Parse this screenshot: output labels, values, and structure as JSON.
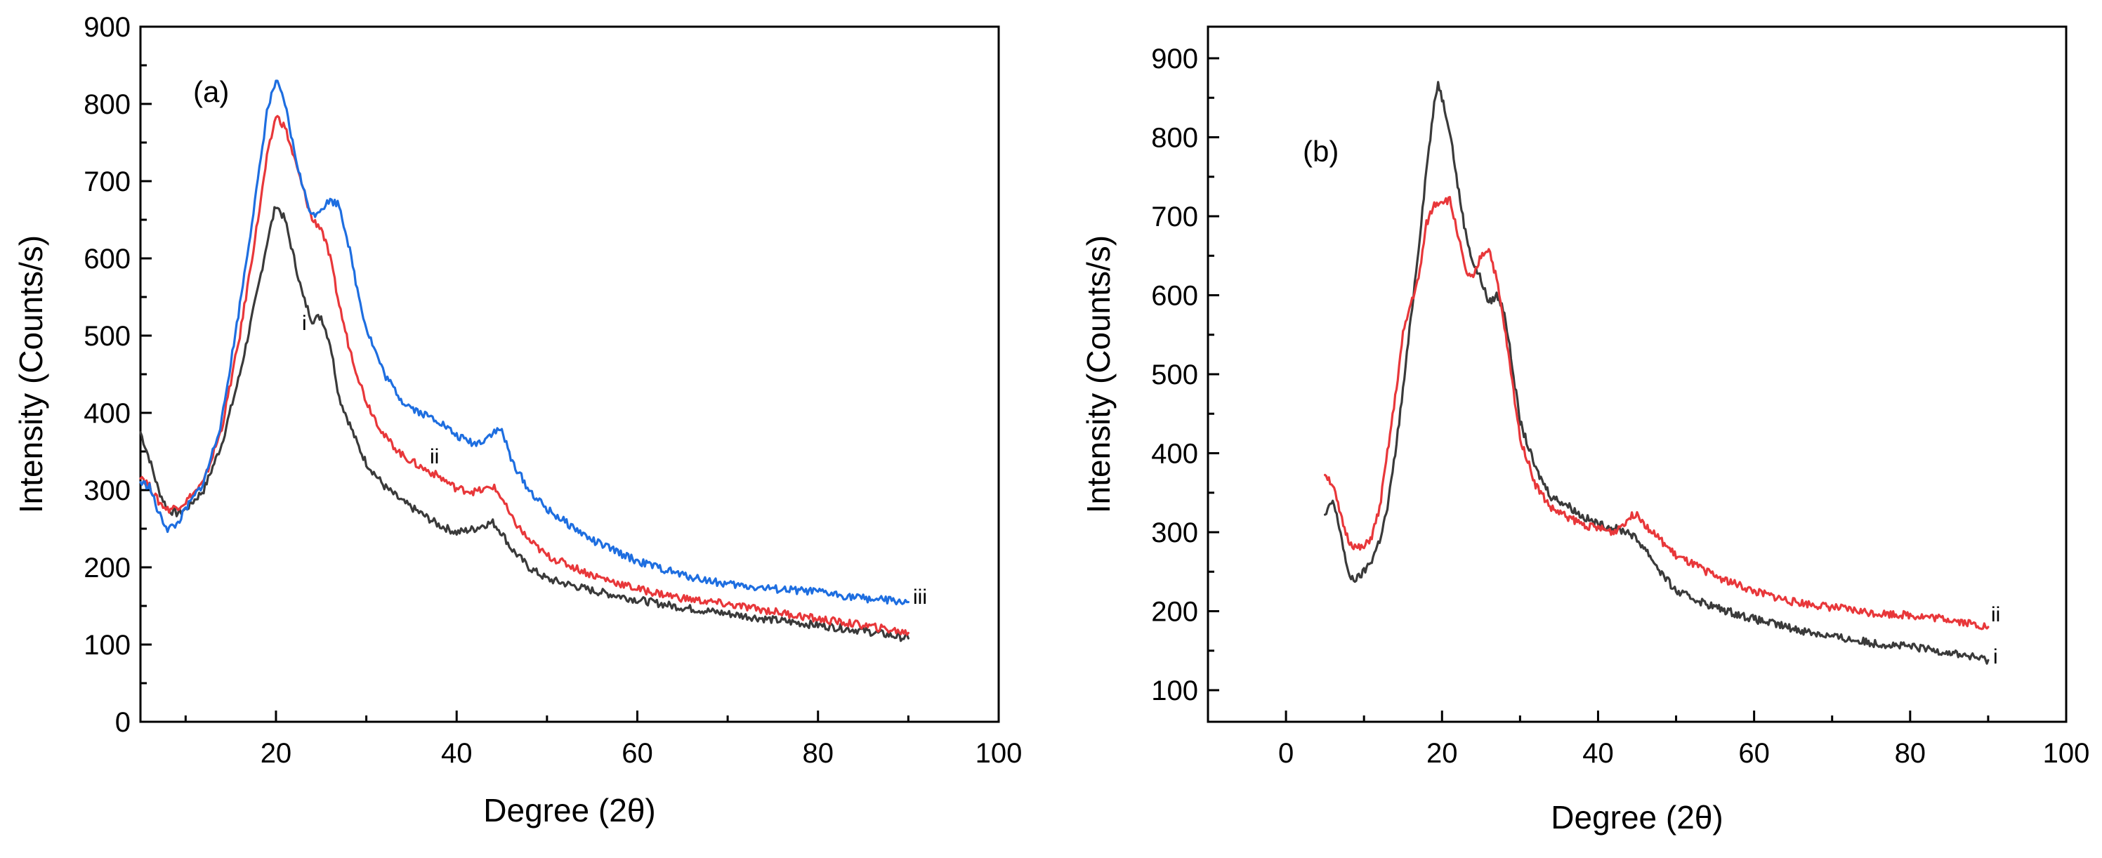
{
  "chart_data": [
    {
      "panel": "(a)",
      "type": "line",
      "xlabel": "Degree (2θ)",
      "ylabel": "Intensity (Counts/s)",
      "xlim": [
        5,
        100
      ],
      "ylim": [
        0,
        900
      ],
      "xticks": [
        20,
        40,
        60,
        80,
        100
      ],
      "yticks": [
        0,
        100,
        200,
        300,
        400,
        500,
        600,
        700,
        800,
        900
      ],
      "series": [
        {
          "name": "i",
          "color": "#3a3a3a",
          "x": [
            5,
            6,
            7,
            8,
            9,
            10,
            12,
            14,
            16,
            18,
            19,
            20,
            21,
            22,
            23,
            24,
            25,
            26,
            27,
            28,
            29,
            30,
            32,
            34,
            36,
            38,
            40,
            42,
            43,
            44,
            45,
            46,
            48,
            50,
            55,
            60,
            65,
            70,
            75,
            80,
            85,
            90
          ],
          "y": [
            375,
            340,
            300,
            275,
            270,
            275,
            300,
            360,
            450,
            560,
            620,
            670,
            650,
            600,
            550,
            520,
            525,
            490,
            420,
            390,
            360,
            335,
            305,
            285,
            270,
            255,
            245,
            250,
            255,
            258,
            245,
            225,
            200,
            185,
            170,
            158,
            148,
            140,
            132,
            125,
            118,
            108
          ]
        },
        {
          "name": "ii",
          "color": "#e8373a",
          "x": [
            5,
            6,
            7,
            8,
            9,
            10,
            12,
            14,
            16,
            18,
            19,
            20,
            21,
            22,
            23,
            24,
            25,
            26,
            27,
            28,
            29,
            30,
            32,
            34,
            36,
            38,
            40,
            42,
            43,
            44,
            45,
            46,
            48,
            50,
            55,
            60,
            65,
            70,
            75,
            80,
            85,
            90
          ],
          "y": [
            320,
            305,
            285,
            275,
            278,
            285,
            310,
            380,
            500,
            650,
            730,
            785,
            770,
            730,
            690,
            650,
            640,
            600,
            540,
            490,
            450,
            415,
            370,
            345,
            330,
            318,
            302,
            298,
            300,
            305,
            290,
            265,
            235,
            215,
            190,
            172,
            160,
            152,
            143,
            133,
            125,
            115
          ]
        },
        {
          "name": "iii",
          "color": "#1e6ee0",
          "x": [
            5,
            6,
            7,
            8,
            9,
            10,
            12,
            14,
            16,
            18,
            19,
            20,
            21,
            22,
            23,
            24,
            25,
            26,
            27,
            28,
            29,
            30,
            32,
            34,
            36,
            38,
            40,
            42,
            43,
            44,
            45,
            46,
            48,
            50,
            55,
            60,
            65,
            70,
            75,
            80,
            85,
            90
          ],
          "y": [
            310,
            305,
            270,
            250,
            255,
            275,
            310,
            390,
            540,
            700,
            790,
            830,
            800,
            740,
            690,
            655,
            665,
            675,
            670,
            620,
            560,
            510,
            450,
            415,
            400,
            390,
            370,
            360,
            365,
            375,
            378,
            340,
            300,
            275,
            235,
            208,
            190,
            178,
            172,
            168,
            160,
            155
          ]
        }
      ],
      "series_labels": [
        "i",
        "ii",
        "iii"
      ]
    },
    {
      "panel": "(b)",
      "type": "line",
      "xlabel": "Degree (2θ)",
      "ylabel": "Intensity (Counts/s)",
      "xlim": [
        -10,
        100
      ],
      "ylim": [
        60,
        940
      ],
      "xticks": [
        0,
        20,
        40,
        60,
        80,
        100
      ],
      "yticks": [
        100,
        200,
        300,
        400,
        500,
        600,
        700,
        800,
        900
      ],
      "series": [
        {
          "name": "i",
          "color": "#3a3a3a",
          "x": [
            5,
            6,
            7,
            8,
            9,
            10,
            11,
            12,
            13,
            14,
            15,
            16,
            17,
            18,
            19,
            19.5,
            20,
            21,
            22,
            23,
            24,
            25,
            26,
            27,
            28,
            29,
            30,
            32,
            34,
            36,
            38,
            40,
            42,
            44,
            46,
            48,
            50,
            55,
            60,
            65,
            70,
            75,
            80,
            85,
            90
          ],
          "y": [
            320,
            340,
            300,
            245,
            240,
            250,
            265,
            290,
            330,
            400,
            480,
            570,
            660,
            760,
            840,
            870,
            850,
            810,
            740,
            680,
            640,
            620,
            590,
            600,
            580,
            510,
            440,
            380,
            345,
            335,
            320,
            310,
            305,
            300,
            280,
            250,
            225,
            205,
            190,
            178,
            168,
            160,
            155,
            148,
            138
          ]
        },
        {
          "name": "ii",
          "color": "#e8373a",
          "x": [
            5,
            6,
            7,
            8,
            9,
            10,
            11,
            12,
            13,
            14,
            15,
            16,
            17,
            18,
            19,
            20,
            21,
            22,
            23,
            24,
            25,
            26,
            27,
            28,
            29,
            30,
            32,
            34,
            36,
            38,
            40,
            42,
            44,
            45,
            46,
            48,
            50,
            55,
            60,
            65,
            70,
            75,
            80,
            85,
            90
          ],
          "y": [
            375,
            360,
            320,
            290,
            280,
            280,
            295,
            330,
            400,
            470,
            550,
            590,
            620,
            690,
            715,
            720,
            720,
            680,
            630,
            620,
            650,
            660,
            620,
            560,
            490,
            420,
            360,
            330,
            320,
            310,
            305,
            300,
            318,
            325,
            310,
            290,
            270,
            245,
            225,
            212,
            205,
            198,
            195,
            190,
            180
          ]
        }
      ],
      "series_labels": [
        "ii",
        "i"
      ]
    }
  ]
}
